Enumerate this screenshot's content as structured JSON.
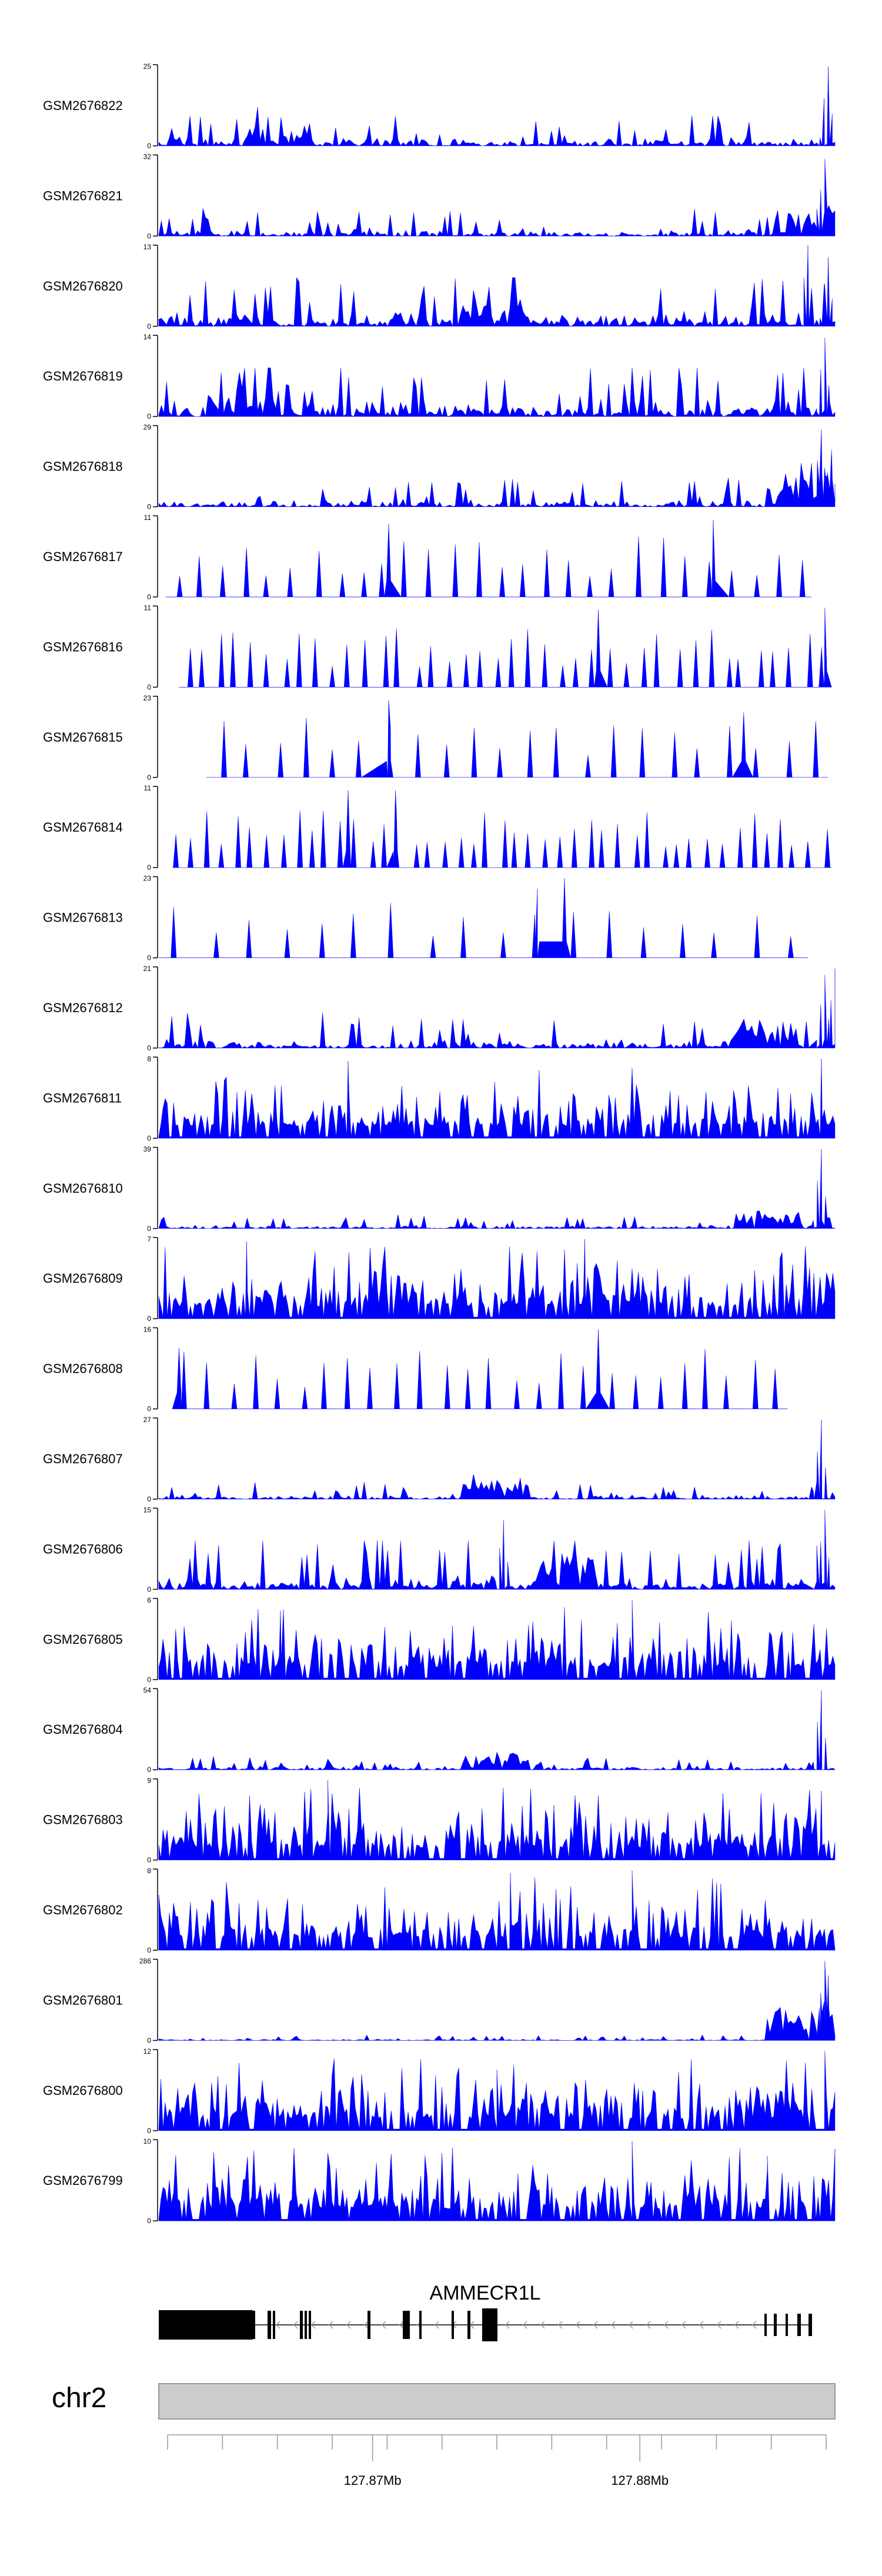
{
  "chart_data": {
    "type": "area",
    "fill_color": "#0000ff",
    "x_axis": {
      "ticks": [
        {
          "value": 127.87,
          "label": "127.87Mb"
        },
        {
          "value": 127.88,
          "label": "127.88Mb"
        }
      ],
      "unit": "Mb",
      "xlim": [
        127.862,
        127.8873
      ]
    },
    "chromosome": "chr2",
    "gene": {
      "name": "AMMECR1L",
      "strand": "-",
      "exon_color": "#000000",
      "intron_arrow": "<"
    },
    "tracks": [
      {
        "name": "GSM2676822",
        "ymax": 25,
        "y_labels": [
          "25",
          "0"
        ],
        "style": "dense",
        "seed": 1,
        "peak_pos": [
          0.99
        ],
        "peak_frac": [
          0.98
        ],
        "base": 0.12,
        "cluster": [
          0.18,
          0.2
        ]
      },
      {
        "name": "GSM2676821",
        "ymax": 32,
        "y_labels": [
          "32",
          "0"
        ],
        "style": "dense",
        "seed": 2,
        "peak_pos": [
          0.985
        ],
        "peak_frac": [
          0.95
        ],
        "base": 0.1,
        "cluster": [
          0.96,
          0.35
        ]
      },
      {
        "name": "GSM2676820",
        "ymax": 13,
        "y_labels": [
          "13",
          "0"
        ],
        "style": "dense",
        "seed": 3,
        "peak_pos": [
          0.96,
          0.99
        ],
        "peak_frac": [
          1.0,
          0.85
        ],
        "base": 0.2,
        "cluster": [
          0.5,
          0.2
        ]
      },
      {
        "name": "GSM2676819",
        "ymax": 14,
        "y_labels": [
          "14",
          "0"
        ],
        "style": "dense",
        "seed": 4,
        "peak_pos": [
          0.985
        ],
        "peak_frac": [
          0.97
        ],
        "base": 0.22,
        "cluster": [
          0.12,
          0.25
        ]
      },
      {
        "name": "GSM2676818",
        "ymax": 29,
        "y_labels": [
          "29",
          "0"
        ],
        "style": "dense",
        "seed": 5,
        "peak_pos": [
          0.98,
          0.995
        ],
        "peak_frac": [
          0.95,
          0.7
        ],
        "base": 0.1,
        "cluster": [
          0.95,
          0.4
        ]
      },
      {
        "name": "GSM2676817",
        "ymax": 11,
        "y_labels": [
          "11",
          "0"
        ],
        "style": "sparse",
        "seed": 6,
        "start": 0.01,
        "end": 0.965,
        "n": 28,
        "peak_pos": [
          0.34,
          0.82
        ],
        "peak_frac": [
          0.9,
          0.95
        ]
      },
      {
        "name": "GSM2676816",
        "ymax": 11,
        "y_labels": [
          "11",
          "0"
        ],
        "style": "sparse",
        "seed": 7,
        "start": 0.03,
        "end": 0.995,
        "n": 40,
        "peak_pos": [
          0.65,
          0.985
        ],
        "peak_frac": [
          0.95,
          0.98
        ]
      },
      {
        "name": "GSM2676815",
        "ymax": 23,
        "y_labels": [
          "23",
          "0"
        ],
        "style": "sparse",
        "seed": 8,
        "start": 0.07,
        "end": 0.99,
        "n": 22,
        "peak_pos": [
          0.34,
          0.865
        ],
        "peak_frac": [
          0.95,
          0.8
        ]
      },
      {
        "name": "GSM2676814",
        "ymax": 11,
        "y_labels": [
          "11",
          "0"
        ],
        "style": "sparse",
        "seed": 9,
        "start": 0.02,
        "end": 0.995,
        "n": 45,
        "peak_pos": [
          0.28,
          0.35
        ],
        "peak_frac": [
          0.95,
          0.95
        ]
      },
      {
        "name": "GSM2676813",
        "ymax": 23,
        "y_labels": [
          "23",
          "0"
        ],
        "style": "sparse",
        "seed": 10,
        "start": 0.0,
        "end": 0.96,
        "n": 18,
        "peak_pos": [
          0.56,
          0.6
        ],
        "peak_frac": [
          0.85,
          0.98
        ]
      },
      {
        "name": "GSM2676812",
        "ymax": 21,
        "y_labels": [
          "21",
          "0"
        ],
        "style": "dense",
        "seed": 11,
        "peak_pos": [
          0.985,
          1.0
        ],
        "peak_frac": [
          0.9,
          0.98
        ],
        "base": 0.12,
        "cluster": [
          0.9,
          0.3
        ]
      },
      {
        "name": "GSM2676811",
        "ymax": 8,
        "y_labels": [
          "8",
          "0"
        ],
        "style": "busy",
        "seed": 12,
        "peak_pos": [
          0.28,
          0.98
        ],
        "peak_frac": [
          0.95,
          0.98
        ]
      },
      {
        "name": "GSM2676810",
        "ymax": 39,
        "y_labels": [
          "39",
          "0"
        ],
        "style": "dense",
        "seed": 13,
        "peak_pos": [
          0.98
        ],
        "peak_frac": [
          0.98
        ],
        "base": 0.05,
        "cluster": [
          0.9,
          0.2
        ]
      },
      {
        "name": "GSM2676809",
        "ymax": 7,
        "y_labels": [
          "7",
          "0"
        ],
        "style": "busy",
        "seed": 14,
        "peak_pos": [
          0.13,
          0.63
        ],
        "peak_frac": [
          0.95,
          0.98
        ]
      },
      {
        "name": "GSM2676808",
        "ymax": 16,
        "y_labels": [
          "16",
          "0"
        ],
        "style": "sparse",
        "seed": 15,
        "start": 0.02,
        "end": 0.93,
        "n": 26,
        "peak_pos": [
          0.03,
          0.65
        ],
        "peak_frac": [
          0.75,
          0.98
        ]
      },
      {
        "name": "GSM2676807",
        "ymax": 27,
        "y_labels": [
          "27",
          "0"
        ],
        "style": "dense",
        "seed": 16,
        "peak_pos": [
          0.98
        ],
        "peak_frac": [
          0.98
        ],
        "base": 0.06,
        "cluster": [
          0.5,
          0.2
        ]
      },
      {
        "name": "GSM2676806",
        "ymax": 15,
        "y_labels": [
          "15",
          "0"
        ],
        "style": "dense",
        "seed": 17,
        "peak_pos": [
          0.51,
          0.985
        ],
        "peak_frac": [
          0.85,
          0.98
        ],
        "base": 0.22,
        "cluster": [
          0.6,
          0.3
        ]
      },
      {
        "name": "GSM2676805",
        "ymax": 6,
        "y_labels": [
          "6",
          "0"
        ],
        "style": "busy",
        "seed": 18,
        "peak_pos": [
          0.18,
          0.7
        ],
        "peak_frac": [
          0.85,
          0.98
        ]
      },
      {
        "name": "GSM2676804",
        "ymax": 54,
        "y_labels": [
          "54",
          "0"
        ],
        "style": "dense",
        "seed": 19,
        "peak_pos": [
          0.98
        ],
        "peak_frac": [
          0.98
        ],
        "base": 0.05,
        "cluster": [
          0.5,
          0.2
        ]
      },
      {
        "name": "GSM2676803",
        "ymax": 9,
        "y_labels": [
          "9",
          "0"
        ],
        "style": "busy",
        "seed": 20,
        "peak_pos": [
          0.25,
          0.98
        ],
        "peak_frac": [
          0.98,
          0.85
        ]
      },
      {
        "name": "GSM2676802",
        "ymax": 8,
        "y_labels": [
          "8",
          "0"
        ],
        "style": "busy",
        "seed": 21,
        "peak_pos": [
          0.52,
          0.7
        ],
        "peak_frac": [
          0.95,
          0.98
        ]
      },
      {
        "name": "GSM2676801",
        "ymax": 286,
        "y_labels": [
          "286",
          "0"
        ],
        "style": "dense",
        "seed": 22,
        "peak_pos": [
          0.985,
          0.99
        ],
        "peak_frac": [
          0.98,
          0.8
        ],
        "base": 0.02,
        "cluster": [
          0.95,
          0.4
        ]
      },
      {
        "name": "GSM2676800",
        "ymax": 12,
        "y_labels": [
          "12",
          "0"
        ],
        "style": "busy",
        "seed": 23,
        "peak_pos": [
          0.5,
          0.985
        ],
        "peak_frac": [
          0.75,
          0.98
        ]
      },
      {
        "name": "GSM2676799",
        "ymax": 10,
        "y_labels": [
          "10",
          "0"
        ],
        "style": "busy",
        "seed": 24,
        "peak_pos": [
          0.7,
          0.9
        ],
        "peak_frac": [
          0.98,
          0.8
        ]
      }
    ]
  }
}
